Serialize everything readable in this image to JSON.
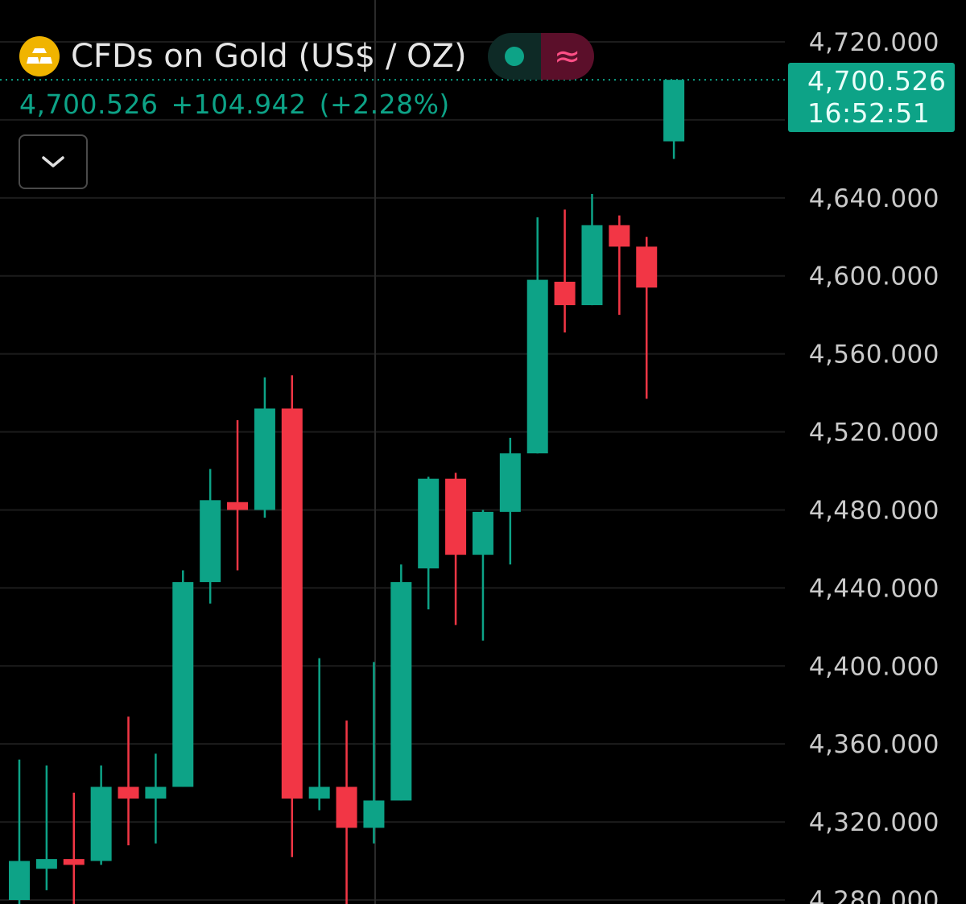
{
  "header": {
    "title": "CFDs on Gold (US$ / OZ)",
    "logo_icon": "gold-bars-icon",
    "status_dot_color": "#0da387",
    "indicator_symbol": "≈"
  },
  "price": {
    "last": "4,700.526",
    "change": "+104.942",
    "change_pct": "(+2.28%)"
  },
  "price_tag": {
    "value": "4,700.526",
    "countdown": "16:52:51"
  },
  "colors": {
    "up": "#0da387",
    "down": "#f23645",
    "background": "#000000",
    "grid": "#1c1c1c"
  },
  "chart_data": {
    "type": "candlestick",
    "ylim": [
      4280,
      4720
    ],
    "y_ticks": [
      "4,720.000",
      "4,680.000",
      "4,640.000",
      "4,600.000",
      "4,560.000",
      "4,520.000",
      "4,480.000",
      "4,440.000",
      "4,400.000",
      "4,360.000",
      "4,320.000",
      "4,280.000"
    ],
    "last_price": 4700.526,
    "candles": [
      {
        "open": 4280,
        "high": 4352,
        "low": 4268,
        "close": 4300
      },
      {
        "open": 4296,
        "high": 4349,
        "low": 4285,
        "close": 4301
      },
      {
        "open": 4301,
        "high": 4335,
        "low": 4262,
        "close": 4298
      },
      {
        "open": 4300,
        "high": 4349,
        "low": 4298,
        "close": 4338
      },
      {
        "open": 4338,
        "high": 4374,
        "low": 4308,
        "close": 4332
      },
      {
        "open": 4332,
        "high": 4355,
        "low": 4309,
        "close": 4338
      },
      {
        "open": 4338,
        "high": 4449,
        "low": 4338,
        "close": 4443
      },
      {
        "open": 4443,
        "high": 4501,
        "low": 4432,
        "close": 4485
      },
      {
        "open": 4484,
        "high": 4526,
        "low": 4449,
        "close": 4480
      },
      {
        "open": 4480,
        "high": 4548,
        "low": 4476,
        "close": 4532
      },
      {
        "open": 4532,
        "high": 4549,
        "low": 4302,
        "close": 4332
      },
      {
        "open": 4332,
        "high": 4404,
        "low": 4326,
        "close": 4338
      },
      {
        "open": 4338,
        "high": 4372,
        "low": 4271,
        "close": 4317
      },
      {
        "open": 4317,
        "high": 4402,
        "low": 4309,
        "close": 4331
      },
      {
        "open": 4331,
        "high": 4452,
        "low": 4331,
        "close": 4443
      },
      {
        "open": 4450,
        "high": 4497,
        "low": 4429,
        "close": 4496
      },
      {
        "open": 4496,
        "high": 4499,
        "low": 4421,
        "close": 4457
      },
      {
        "open": 4457,
        "high": 4480,
        "low": 4413,
        "close": 4479
      },
      {
        "open": 4479,
        "high": 4517,
        "low": 4452,
        "close": 4509
      },
      {
        "open": 4509,
        "high": 4630,
        "low": 4509,
        "close": 4598
      },
      {
        "open": 4597,
        "high": 4634,
        "low": 4571,
        "close": 4585
      },
      {
        "open": 4585,
        "high": 4642,
        "low": 4585,
        "close": 4626
      },
      {
        "open": 4626,
        "high": 4631,
        "low": 4580,
        "close": 4615
      },
      {
        "open": 4615,
        "high": 4620,
        "low": 4537,
        "close": 4594
      },
      {
        "open": 4669,
        "high": 4700.526,
        "low": 4660,
        "close": 4700.526
      }
    ]
  }
}
